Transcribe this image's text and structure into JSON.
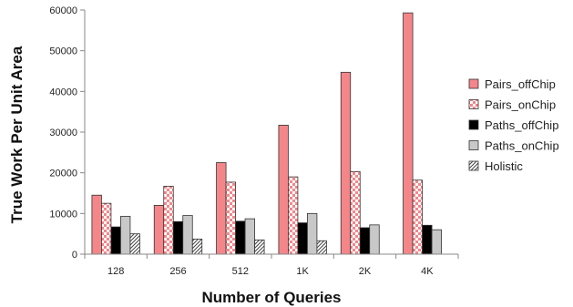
{
  "chart_data": {
    "type": "bar",
    "title": "",
    "xlabel": "Number of Queries",
    "ylabel": "True Work Per Unit Area",
    "ylim": [
      0,
      60000
    ],
    "yticks": [
      0,
      10000,
      20000,
      30000,
      40000,
      50000,
      60000
    ],
    "grid": false,
    "legend_position": "right",
    "categories": [
      "128",
      "256",
      "512",
      "1K",
      "2K",
      "4K"
    ],
    "series": [
      {
        "name": "Pairs_offChip",
        "pattern": "solid",
        "color": "#f4868a",
        "values": [
          14500,
          12000,
          22500,
          31700,
          44700,
          59300
        ]
      },
      {
        "name": "Pairs_onChip",
        "pattern": "checker",
        "color": "#f4868a",
        "values": [
          12500,
          16700,
          17700,
          19000,
          20300,
          18200
        ]
      },
      {
        "name": "Paths_offChip",
        "pattern": "solid",
        "color": "#000000",
        "values": [
          6700,
          8000,
          8100,
          7700,
          6500,
          7100
        ]
      },
      {
        "name": "Paths_onChip",
        "pattern": "solid",
        "color": "#c8c8c8",
        "values": [
          9300,
          9500,
          8700,
          10000,
          7200,
          6000
        ]
      },
      {
        "name": "Holistic",
        "pattern": "hatch",
        "color": "#555555",
        "values": [
          5000,
          3700,
          3500,
          3300,
          null,
          null
        ]
      }
    ]
  }
}
